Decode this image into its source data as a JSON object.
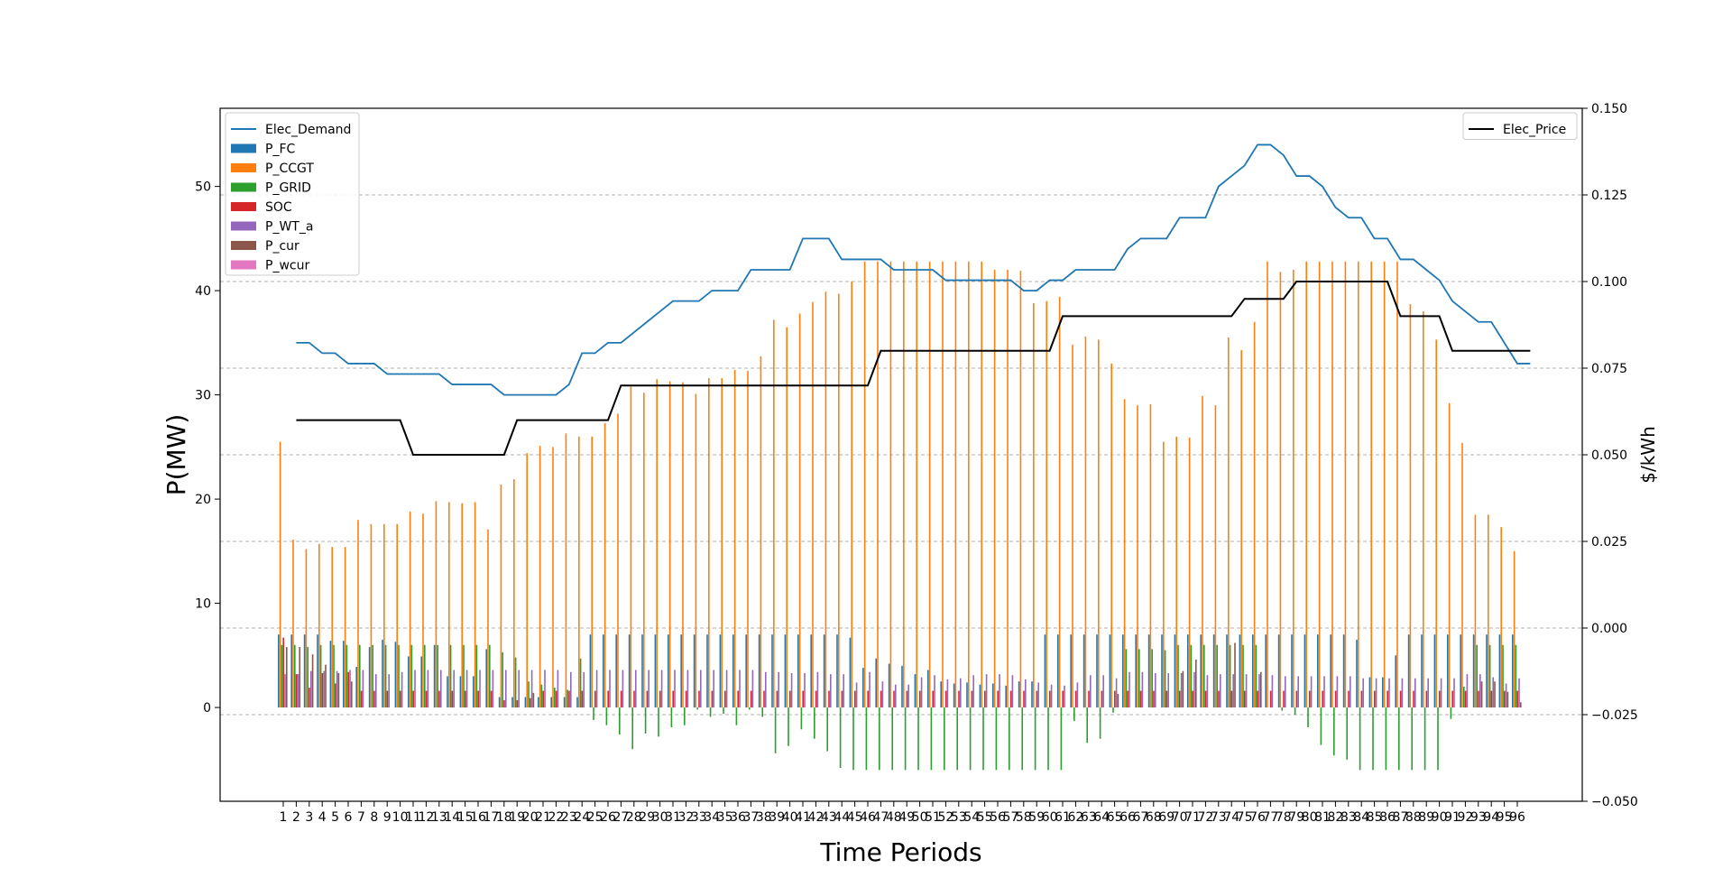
{
  "chart_data": {
    "type": "bar",
    "xlabel": "Time Periods",
    "ylabel": "P(MW)",
    "ylabel_right": "$/kWh",
    "categories": [
      "1",
      "2",
      "3",
      "4",
      "5",
      "6",
      "7",
      "8",
      "9",
      "10",
      "11",
      "12",
      "13",
      "14",
      "15",
      "16",
      "17",
      "18",
      "19",
      "20",
      "21",
      "22",
      "23",
      "24",
      "25",
      "26",
      "27",
      "28",
      "29",
      "30",
      "31",
      "32",
      "33",
      "34",
      "35",
      "36",
      "37",
      "38",
      "39",
      "40",
      "41",
      "42",
      "43",
      "44",
      "45",
      "46",
      "47",
      "48",
      "49",
      "50",
      "51",
      "52",
      "53",
      "54",
      "55",
      "56",
      "57",
      "58",
      "59",
      "60",
      "61",
      "62",
      "63",
      "64",
      "65",
      "66",
      "67",
      "68",
      "69",
      "70",
      "71",
      "72",
      "73",
      "74",
      "75",
      "76",
      "77",
      "78",
      "79",
      "80",
      "81",
      "82",
      "83",
      "84",
      "85",
      "86",
      "87",
      "88",
      "89",
      "90",
      "91",
      "92",
      "93",
      "94",
      "95",
      "96"
    ],
    "ylim": [
      -9,
      57.5
    ],
    "yticks": [
      0,
      10,
      20,
      30,
      40,
      50
    ],
    "y2lim": [
      -0.05,
      0.15
    ],
    "y2ticks": [
      -0.05,
      -0.025,
      0.0,
      0.025,
      0.05,
      0.075,
      0.1,
      0.125,
      0.15
    ],
    "y2tick_labels": [
      "−0.050",
      "−0.025",
      "0.000",
      "0.025",
      "0.050",
      "0.075",
      "0.100",
      "0.125",
      "0.150"
    ],
    "grid": true,
    "legend_left_placement": "upper-left",
    "legend_right_placement": "upper-right",
    "bar_series": [
      {
        "name": "P_FC",
        "color": "#1f77b4",
        "values": [
          7,
          7,
          7,
          7,
          6.4,
          6.4,
          3.9,
          5.8,
          6.5,
          6.3,
          4.9,
          4.9,
          6,
          3,
          3,
          3,
          5.6,
          1,
          1,
          1,
          1,
          1,
          1,
          1,
          7,
          7,
          7,
          7,
          7,
          7,
          7,
          7,
          7,
          7,
          7,
          7,
          7,
          7,
          7,
          7,
          7,
          7,
          7,
          7,
          6.7,
          3.8,
          4.7,
          4.2,
          4,
          3.2,
          3.6,
          2.5,
          2.3,
          2.4,
          2.2,
          2.3,
          2.1,
          2.5,
          2.5,
          7,
          7,
          7,
          7,
          7,
          7,
          7,
          7,
          7,
          7,
          7,
          7,
          7,
          7,
          7,
          7,
          7,
          7,
          7,
          7,
          7,
          7,
          7,
          7,
          6.5,
          2.9,
          2.9,
          5,
          7,
          7,
          7,
          7,
          7,
          7,
          7,
          7,
          7
        ]
      },
      {
        "name": "P_CCGT",
        "color": "#ff7f0e",
        "values": [
          25.5,
          16.1,
          15.2,
          15.7,
          15.4,
          15.4,
          18.0,
          17.6,
          17.6,
          17.6,
          18.8,
          18.6,
          19.8,
          19.7,
          19.6,
          19.7,
          17.1,
          21.4,
          21.9,
          24.4,
          25.1,
          25.0,
          26.3,
          26.0,
          26.0,
          27.3,
          28.2,
          30.8,
          30.2,
          31.5,
          31.3,
          31.2,
          30.1,
          31.6,
          31.6,
          32.4,
          32.3,
          33.7,
          37.2,
          36.5,
          37.8,
          38.9,
          39.9,
          39.7,
          40.9,
          42.8,
          42.8,
          42.8,
          42.8,
          42.8,
          42.8,
          42.8,
          42.8,
          42.8,
          42.8,
          42.0,
          42.0,
          41.9,
          38.8,
          39.0,
          39.4,
          34.8,
          35.6,
          35.3,
          33.0,
          29.6,
          29.0,
          29.1,
          25.5,
          26.0,
          25.9,
          29.9,
          29.0,
          35.5,
          34.3,
          37.0,
          42.8,
          41.8,
          42.0,
          42.8,
          42.8,
          42.8,
          42.8,
          42.8,
          42.8,
          42.8,
          42.8,
          38.7,
          38.0,
          35.3,
          29.2,
          25.4,
          18.5,
          18.5,
          17.3,
          15.0
        ]
      },
      {
        "name": "P_GRID",
        "color": "#2ca02c",
        "values": [
          6,
          6,
          5.8,
          6,
          6,
          6,
          6,
          6,
          6,
          6,
          6,
          6,
          6,
          6,
          6,
          6,
          6,
          5.3,
          4.8,
          2.5,
          2.2,
          1.9,
          1.7,
          4.7,
          -1.2,
          -1.7,
          -2.6,
          -4.0,
          -2.5,
          -2.8,
          -1.9,
          -1.7,
          -0.2,
          -0.9,
          -0.6,
          -1.7,
          -0.2,
          -0.9,
          -4.4,
          -3.7,
          -2.1,
          -3.0,
          -4.2,
          -5.8,
          -6.0,
          -6.0,
          -6.0,
          -6.0,
          -6.0,
          -6.0,
          -6.0,
          -6.0,
          -6.0,
          -6.0,
          -6.0,
          -6.0,
          -6.0,
          -6.0,
          -6.0,
          -6.0,
          -6.0,
          -1.3,
          -3.4,
          -3.0,
          -0.5,
          5.6,
          5.6,
          5.6,
          5.5,
          6.0,
          6.0,
          6.0,
          6.0,
          6.0,
          6.0,
          6.0,
          0,
          -0.3,
          -0.7,
          -1.9,
          -3.6,
          -4.6,
          -5.0,
          -6.0,
          -6.0,
          -6.0,
          -6.0,
          -6.0,
          -6.0,
          -6.0,
          -1.1,
          2.0,
          6.0,
          6.0,
          6.0,
          6.0
        ]
      },
      {
        "name": "SOC",
        "color": "#d62728",
        "values": [
          6.7,
          3.2,
          1.9,
          3.3,
          2.3,
          3.4,
          1.6,
          1.6,
          1.6,
          1.6,
          1.6,
          1.6,
          1.6,
          1.6,
          1.6,
          1.6,
          1.6,
          0.7,
          0.7,
          0.9,
          1.6,
          1.6,
          1.6,
          1.6,
          1.6,
          1.6,
          1.6,
          1.6,
          1.6,
          1.6,
          1.6,
          1.6,
          1.6,
          1.6,
          1.6,
          1.6,
          1.6,
          1.6,
          1.6,
          1.6,
          1.6,
          1.6,
          1.6,
          1.6,
          1.6,
          1.6,
          1.6,
          1.6,
          1.6,
          1.6,
          1.6,
          1.6,
          1.6,
          1.6,
          1.6,
          1.6,
          1.6,
          1.6,
          1.6,
          1.6,
          1.6,
          1.6,
          1.6,
          1.6,
          1.6,
          1.6,
          1.6,
          1.6,
          1.6,
          1.6,
          1.6,
          1.6,
          1.6,
          1.6,
          1.6,
          1.6,
          1.6,
          1.6,
          1.6,
          1.6,
          1.6,
          1.6,
          1.6,
          1.6,
          1.6,
          1.6,
          1.6,
          1.6,
          1.6,
          1.6,
          1.6,
          1.6,
          1.6,
          1.6,
          1.6,
          1.6
        ]
      },
      {
        "name": "P_WT_a",
        "color": "#9467bd",
        "values": [
          3.2,
          3.2,
          3.5,
          3.5,
          3.5,
          3.6,
          3.6,
          3.2,
          3.2,
          3.4,
          3.6,
          3.6,
          3.6,
          3.6,
          3.6,
          3.6,
          3.6,
          3.6,
          3.6,
          3.6,
          3.6,
          3.6,
          3.4,
          3.4,
          3.6,
          3.6,
          3.6,
          3.6,
          3.6,
          3.6,
          3.6,
          3.6,
          3.6,
          3.6,
          3.6,
          3.6,
          3.6,
          3.4,
          3.4,
          3.3,
          3.3,
          3.4,
          3.2,
          3.2,
          2.4,
          3.4,
          2.5,
          2.2,
          2.2,
          2.9,
          3.1,
          2.7,
          2.8,
          3.1,
          3.2,
          3.2,
          3.1,
          2.7,
          2.4,
          2.2,
          2.1,
          2.4,
          3.1,
          3.1,
          2.8,
          3.4,
          3.4,
          3.3,
          3.3,
          3.3,
          3.4,
          3.1,
          3.2,
          3.2,
          3.2,
          3.2,
          3.1,
          3.0,
          3.0,
          3.0,
          3.0,
          3.0,
          3.0,
          2.8,
          2.8,
          2.8,
          2.8,
          2.8,
          2.8,
          2.8,
          2.8,
          3.2,
          3.2,
          2.9,
          2.3,
          2.8
        ]
      },
      {
        "name": "P_cur",
        "color": "#8c564b",
        "values": [
          5.8,
          5.8,
          5.1,
          4.1,
          3.3,
          2.5,
          0,
          0,
          0,
          0,
          0,
          0,
          0,
          0,
          0,
          0,
          0,
          0,
          0,
          1.4,
          0,
          0,
          0,
          0,
          0,
          0,
          0,
          0,
          0,
          0,
          0,
          0,
          0,
          0,
          0,
          0,
          0,
          0,
          0,
          0,
          0,
          0,
          0,
          0,
          0,
          0,
          0,
          0,
          0,
          0,
          0,
          0,
          0,
          0,
          0,
          0,
          0,
          0,
          0,
          0,
          0,
          0,
          0,
          0,
          1.3,
          0,
          0,
          0,
          0,
          3.5,
          4.6,
          0,
          0,
          6.2,
          0,
          3.4,
          0,
          0,
          0,
          0,
          0,
          0,
          0,
          0,
          0,
          0,
          0,
          0,
          0,
          0,
          0,
          0,
          2.5,
          2.5,
          1.5,
          0.5
        ]
      },
      {
        "name": "P_wcur",
        "color": "#e377c2",
        "values": [
          0,
          0,
          0,
          0,
          0,
          0,
          0,
          0,
          0,
          0,
          0,
          0,
          0,
          0,
          0,
          0,
          0,
          0,
          0,
          0,
          0,
          0,
          0,
          0,
          0,
          0,
          0,
          0,
          0,
          0,
          0,
          0,
          0,
          0,
          0,
          0,
          0,
          0,
          0,
          0,
          0,
          0,
          0,
          0,
          0,
          0,
          0,
          0,
          0,
          0,
          0,
          0,
          0,
          0,
          0,
          0,
          0,
          0,
          0,
          0,
          0,
          0,
          0,
          0,
          0,
          0,
          0,
          0,
          0,
          0,
          0,
          0,
          0,
          0,
          0,
          0,
          0,
          0,
          0,
          0,
          0,
          0,
          0,
          0,
          0,
          0,
          0,
          0,
          0,
          0,
          0,
          0,
          0,
          0,
          0,
          0
        ]
      }
    ],
    "line_series": [
      {
        "name": "Elec_Demand",
        "color": "#1f77b4",
        "axis": "left",
        "values": [
          35,
          35,
          34,
          34,
          33,
          33,
          33,
          32,
          32,
          32,
          32,
          32,
          31,
          31,
          31,
          31,
          30,
          30,
          30,
          30,
          30,
          31,
          34,
          34,
          35,
          35,
          36,
          37,
          38,
          39,
          39,
          39,
          40,
          40,
          40,
          42,
          42,
          42,
          42,
          45,
          45,
          45,
          43,
          43,
          43,
          43,
          42,
          42,
          42,
          42,
          41,
          41,
          41,
          41,
          41,
          41,
          40,
          40,
          41,
          41,
          42,
          42,
          42,
          42,
          44,
          45,
          45,
          45,
          47,
          47,
          47,
          50,
          51,
          52,
          54,
          54,
          53,
          51,
          51,
          50,
          48,
          47,
          47,
          45,
          45,
          43,
          43,
          42,
          41,
          39,
          38,
          37,
          37,
          35,
          33,
          33
        ]
      },
      {
        "name": "Elec_Price",
        "color": "#000000",
        "axis": "right",
        "values": [
          0.06,
          0.06,
          0.06,
          0.06,
          0.06,
          0.06,
          0.06,
          0.06,
          0.06,
          0.05,
          0.05,
          0.05,
          0.05,
          0.05,
          0.05,
          0.05,
          0.05,
          0.06,
          0.06,
          0.06,
          0.06,
          0.06,
          0.06,
          0.06,
          0.06,
          0.07,
          0.07,
          0.07,
          0.07,
          0.07,
          0.07,
          0.07,
          0.07,
          0.07,
          0.07,
          0.07,
          0.07,
          0.07,
          0.07,
          0.07,
          0.07,
          0.07,
          0.07,
          0.07,
          0.07,
          0.08,
          0.08,
          0.08,
          0.08,
          0.08,
          0.08,
          0.08,
          0.08,
          0.08,
          0.08,
          0.08,
          0.08,
          0.08,
          0.08,
          0.09,
          0.09,
          0.09,
          0.09,
          0.09,
          0.09,
          0.09,
          0.09,
          0.09,
          0.09,
          0.09,
          0.09,
          0.09,
          0.09,
          0.095,
          0.095,
          0.095,
          0.095,
          0.1,
          0.1,
          0.1,
          0.1,
          0.1,
          0.1,
          0.1,
          0.1,
          0.09,
          0.09,
          0.09,
          0.09,
          0.08,
          0.08,
          0.08,
          0.08,
          0.08,
          0.08,
          0.08
        ]
      }
    ],
    "legend_left": [
      "Elec_Demand",
      "P_FC",
      "P_CCGT",
      "P_GRID",
      "SOC",
      "P_WT_a",
      "P_cur",
      "P_wcur"
    ],
    "legend_right": [
      "Elec_Price"
    ]
  }
}
